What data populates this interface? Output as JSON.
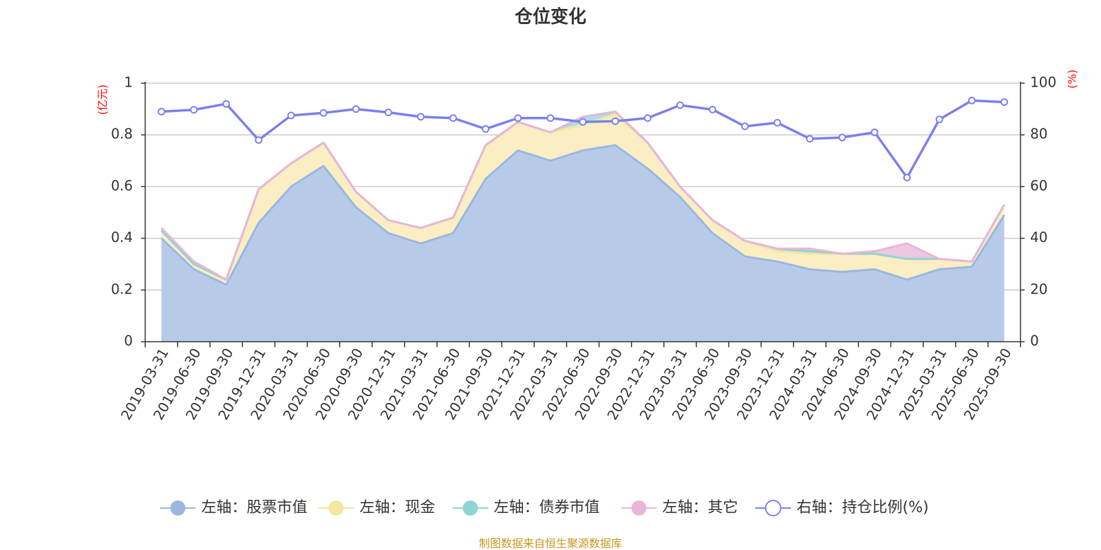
{
  "chart_data": {
    "type": "area",
    "title": "仓位变化",
    "categories": [
      "2019-03-31",
      "2019-06-30",
      "2019-09-30",
      "2019-12-31",
      "2020-03-31",
      "2020-06-30",
      "2020-09-30",
      "2020-12-31",
      "2021-03-31",
      "2021-06-30",
      "2021-09-30",
      "2021-12-31",
      "2022-03-31",
      "2022-06-30",
      "2022-09-30",
      "2022-12-31",
      "2023-03-31",
      "2023-06-30",
      "2023-09-30",
      "2023-12-31",
      "2024-03-31",
      "2024-06-30",
      "2024-09-30",
      "2024-12-31",
      "2025-03-31",
      "2025-06-30",
      "2025-09-30"
    ],
    "left_axis": {
      "unit_label": "(亿元)",
      "ylim": [
        0,
        1
      ],
      "ticks": [
        "0",
        "0.2",
        "0.4",
        "0.6",
        "0.8",
        "1"
      ]
    },
    "right_axis": {
      "unit_label": "(%)",
      "ylim": [
        0,
        100
      ],
      "ticks": [
        "0",
        "20",
        "40",
        "60",
        "80",
        "100"
      ]
    },
    "series": [
      {
        "name": "左轴：股票市值",
        "axis": "left",
        "stack": true,
        "color": "#9bb7e0",
        "fill": "#b7cbe9",
        "values": [
          0.4,
          0.28,
          0.22,
          0.46,
          0.6,
          0.68,
          0.52,
          0.42,
          0.38,
          0.42,
          0.63,
          0.74,
          0.7,
          0.74,
          0.76,
          0.67,
          0.56,
          0.42,
          0.33,
          0.31,
          0.28,
          0.27,
          0.28,
          0.24,
          0.28,
          0.29,
          0.49
        ]
      },
      {
        "name": "左轴：现金",
        "axis": "left",
        "stack": true,
        "color": "#f5e6a0",
        "fill": "#faeec2",
        "values": [
          0.03,
          0.02,
          0.02,
          0.13,
          0.09,
          0.09,
          0.06,
          0.05,
          0.06,
          0.06,
          0.13,
          0.11,
          0.11,
          0.1,
          0.12,
          0.1,
          0.04,
          0.05,
          0.06,
          0.04,
          0.06,
          0.07,
          0.06,
          0.08,
          0.04,
          0.02,
          0.04
        ]
      },
      {
        "name": "左轴：债券市值",
        "axis": "left",
        "stack": true,
        "color": "#8fd4d4",
        "fill": "#a9dfdf",
        "values": [
          0,
          0,
          0,
          0,
          0,
          0,
          0,
          0,
          0,
          0,
          0,
          0,
          0,
          0.03,
          0.01,
          0,
          0,
          0,
          0,
          0.01,
          0.01,
          0,
          0,
          0,
          0,
          0,
          0
        ]
      },
      {
        "name": "左轴：其它",
        "axis": "left",
        "stack": true,
        "color": "#e8b6d8",
        "fill": "#ecc8e2",
        "values": [
          0.01,
          0.01,
          0.0,
          0,
          0,
          0,
          0,
          0,
          0,
          0,
          0,
          0,
          0,
          0,
          0,
          0,
          0,
          0,
          0,
          0,
          0.01,
          0,
          0.01,
          0.06,
          0,
          0,
          0
        ]
      },
      {
        "name": "右轴：持仓比例(%)",
        "axis": "right",
        "stack": false,
        "color": "#7b7ff0",
        "values": [
          89,
          89.7,
          92,
          78,
          87.5,
          88.5,
          90,
          88.7,
          87,
          86.5,
          82.3,
          86.5,
          86.5,
          85,
          85.3,
          86.5,
          91.5,
          89.8,
          83.3,
          84.7,
          78.5,
          79,
          81,
          63.5,
          86,
          93.3,
          92.7
        ]
      }
    ],
    "source": "制图数据来自恒生聚源数据库"
  }
}
